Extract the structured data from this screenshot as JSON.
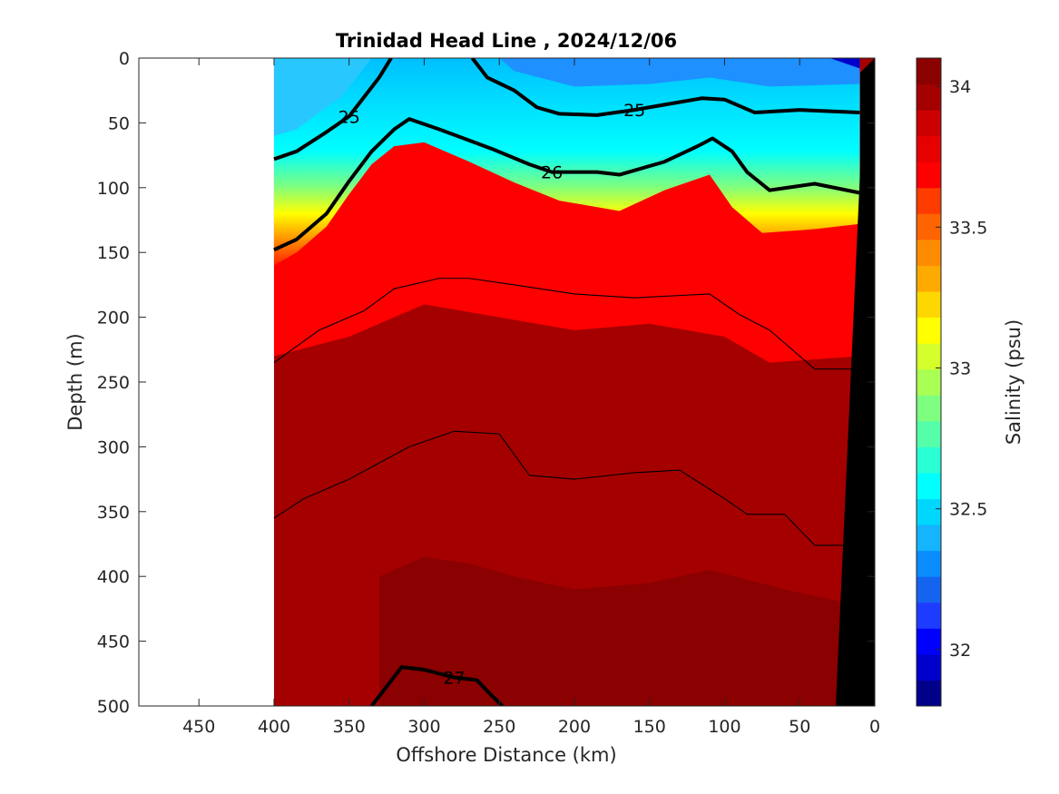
{
  "chart_data": {
    "type": "heatmap",
    "title": "Trinidad Head Line , 2024/12/06",
    "xlabel": "Offshore Distance (km)",
    "ylabel": "Depth (m)",
    "x_direction": "reversed",
    "y_direction": "reversed",
    "xlim": [
      0,
      490
    ],
    "ylim": [
      0,
      500
    ],
    "xticks": [
      "450",
      "400",
      "350",
      "300",
      "250",
      "200",
      "150",
      "100",
      "50",
      "0"
    ],
    "xtick_values": [
      450,
      400,
      350,
      300,
      250,
      200,
      150,
      100,
      50,
      0
    ],
    "yticks": [
      "0",
      "50",
      "100",
      "150",
      "200",
      "250",
      "300",
      "350",
      "400",
      "450",
      "500"
    ],
    "ytick_values": [
      0,
      50,
      100,
      150,
      200,
      250,
      300,
      350,
      400,
      450,
      500
    ],
    "data_x_range": [
      10,
      400
    ],
    "colorbar": {
      "label": "Salinity (psu)",
      "range": [
        31.8,
        34.1
      ],
      "tick_labels": [
        "32",
        "32.5",
        "33",
        "33.5",
        "34"
      ],
      "tick_values": [
        32,
        32.5,
        33,
        33.5,
        34
      ],
      "colors": [
        "#00008b",
        "#0000cd",
        "#0000ff",
        "#1e3cff",
        "#1464f0",
        "#0a8cff",
        "#14b4ff",
        "#00d7ff",
        "#00ffff",
        "#2affd4",
        "#55ffaa",
        "#7fff7f",
        "#aaff55",
        "#d4ff2a",
        "#ffff00",
        "#ffd700",
        "#ffaa00",
        "#ff8c00",
        "#ff6400",
        "#ff3c00",
        "#ff0000",
        "#e60000",
        "#cc0000",
        "#a50000",
        "#8b0000"
      ]
    },
    "salinity_layers": [
      {
        "min_depth": 0,
        "max_depth": 40,
        "salinity_range": [
          32.3,
          32.7
        ]
      },
      {
        "min_depth": 40,
        "max_depth": 130,
        "salinity_range": [
          32.7,
          33.8
        ]
      },
      {
        "min_depth": 60,
        "max_depth": 300,
        "salinity_range": [
          33.8,
          33.95
        ]
      },
      {
        "min_depth": 200,
        "max_depth": 500,
        "salinity_range": [
          33.95,
          34.1
        ]
      }
    ],
    "density_contours": [
      {
        "label": "25",
        "style": "bold",
        "points": [
          [
            400,
            78
          ],
          [
            385,
            72
          ],
          [
            365,
            57
          ],
          [
            350,
            45
          ],
          [
            340,
            30
          ],
          [
            330,
            15
          ],
          [
            322,
            0
          ]
        ]
      },
      {
        "label": "25",
        "style": "bold",
        "points": [
          [
            268,
            0
          ],
          [
            258,
            15
          ],
          [
            240,
            25
          ],
          [
            225,
            38
          ],
          [
            210,
            43
          ],
          [
            185,
            44
          ],
          [
            160,
            40
          ],
          [
            140,
            36
          ],
          [
            115,
            31
          ],
          [
            100,
            32
          ],
          [
            80,
            42
          ],
          [
            50,
            40
          ],
          [
            10,
            42
          ]
        ]
      },
      {
        "label": "26",
        "style": "bold",
        "points": [
          [
            400,
            148
          ],
          [
            385,
            140
          ],
          [
            365,
            120
          ],
          [
            350,
            95
          ],
          [
            335,
            72
          ],
          [
            320,
            55
          ],
          [
            310,
            47
          ],
          [
            290,
            55
          ],
          [
            255,
            70
          ],
          [
            230,
            82
          ],
          [
            215,
            88
          ],
          [
            185,
            88
          ],
          [
            170,
            90
          ],
          [
            140,
            80
          ],
          [
            118,
            68
          ],
          [
            108,
            62
          ],
          [
            95,
            72
          ],
          [
            85,
            88
          ],
          [
            70,
            102
          ],
          [
            40,
            97
          ],
          [
            10,
            104
          ]
        ]
      },
      {
        "label": "27",
        "style": "bold",
        "points": [
          [
            335,
            500
          ],
          [
            325,
            485
          ],
          [
            315,
            470
          ],
          [
            300,
            472
          ],
          [
            280,
            478
          ],
          [
            265,
            480
          ],
          [
            255,
            492
          ],
          [
            248,
            500
          ]
        ]
      },
      {
        "label": "",
        "style": "thin",
        "points": [
          [
            400,
            235
          ],
          [
            370,
            210
          ],
          [
            340,
            195
          ],
          [
            320,
            178
          ],
          [
            290,
            170
          ],
          [
            270,
            170
          ],
          [
            240,
            175
          ],
          [
            200,
            182
          ],
          [
            160,
            185
          ],
          [
            110,
            182
          ],
          [
            90,
            198
          ],
          [
            70,
            210
          ],
          [
            40,
            240
          ],
          [
            10,
            240
          ]
        ]
      },
      {
        "label": "",
        "style": "thin",
        "points": [
          [
            400,
            355
          ],
          [
            380,
            340
          ],
          [
            350,
            325
          ],
          [
            310,
            300
          ],
          [
            280,
            288
          ],
          [
            250,
            290
          ],
          [
            230,
            322
          ],
          [
            200,
            325
          ],
          [
            160,
            320
          ],
          [
            130,
            318
          ],
          [
            100,
            340
          ],
          [
            85,
            352
          ],
          [
            60,
            352
          ],
          [
            40,
            376
          ],
          [
            10,
            376
          ]
        ]
      }
    ]
  }
}
